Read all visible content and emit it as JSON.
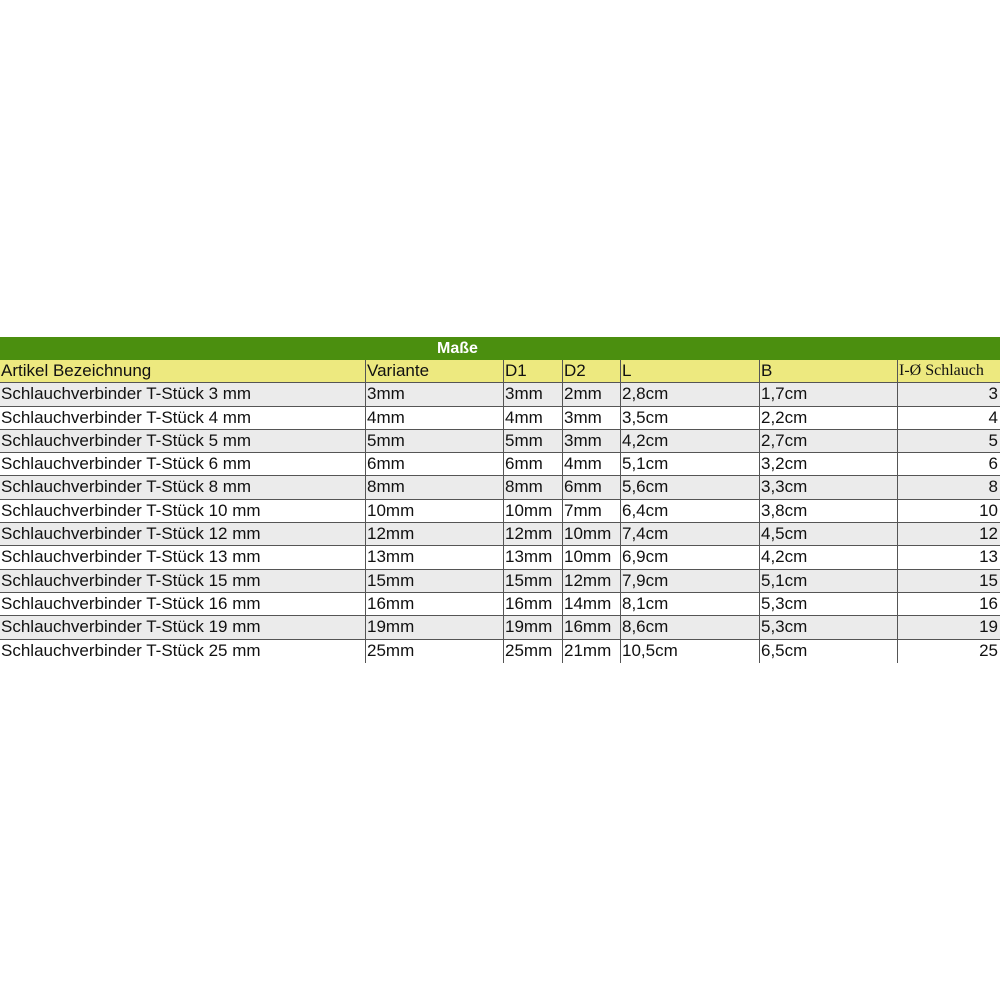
{
  "title": "Maße",
  "headers": [
    "Artikel Bezeichnung",
    "Variante",
    "D1",
    "D2",
    "L",
    "B",
    "I-Ø Schlauch"
  ],
  "rows": [
    [
      "Schlauchverbinder T-Stück 3 mm",
      "3mm",
      "3mm",
      "2mm",
      "2,8cm",
      "1,7cm",
      "3"
    ],
    [
      "Schlauchverbinder T-Stück 4 mm",
      "4mm",
      "4mm",
      "3mm",
      "3,5cm",
      "2,2cm",
      "4"
    ],
    [
      "Schlauchverbinder T-Stück 5 mm",
      "5mm",
      "5mm",
      "3mm",
      "4,2cm",
      "2,7cm",
      "5"
    ],
    [
      "Schlauchverbinder T-Stück 6 mm",
      "6mm",
      "6mm",
      "4mm",
      "5,1cm",
      "3,2cm",
      "6"
    ],
    [
      "Schlauchverbinder T-Stück 8 mm",
      "8mm",
      "8mm",
      "6mm",
      "5,6cm",
      "3,3cm",
      "8"
    ],
    [
      "Schlauchverbinder T-Stück 10 mm",
      "10mm",
      "10mm",
      "7mm",
      "6,4cm",
      "3,8cm",
      "10"
    ],
    [
      "Schlauchverbinder T-Stück 12 mm",
      "12mm",
      "12mm",
      "10mm",
      "7,4cm",
      "4,5cm",
      "12"
    ],
    [
      "Schlauchverbinder T-Stück 13 mm",
      "13mm",
      "13mm",
      "10mm",
      "6,9cm",
      "4,2cm",
      "13"
    ],
    [
      "Schlauchverbinder T-Stück 15 mm",
      "15mm",
      "15mm",
      "12mm",
      "7,9cm",
      "5,1cm",
      "15"
    ],
    [
      "Schlauchverbinder T-Stück 16 mm",
      "16mm",
      "16mm",
      "14mm",
      "8,1cm",
      "5,3cm",
      "16"
    ],
    [
      "Schlauchverbinder T-Stück 19 mm",
      "19mm",
      "19mm",
      "16mm",
      "8,6cm",
      "5,3cm",
      "19"
    ],
    [
      "Schlauchverbinder T-Stück 25 mm",
      "25mm",
      "25mm",
      "21mm",
      "10,5cm",
      "6,5cm",
      "25"
    ]
  ],
  "colors": {
    "title_bg": "#4b8f0f",
    "header_bg": "#ede97f",
    "stripe": "#ebebeb"
  }
}
